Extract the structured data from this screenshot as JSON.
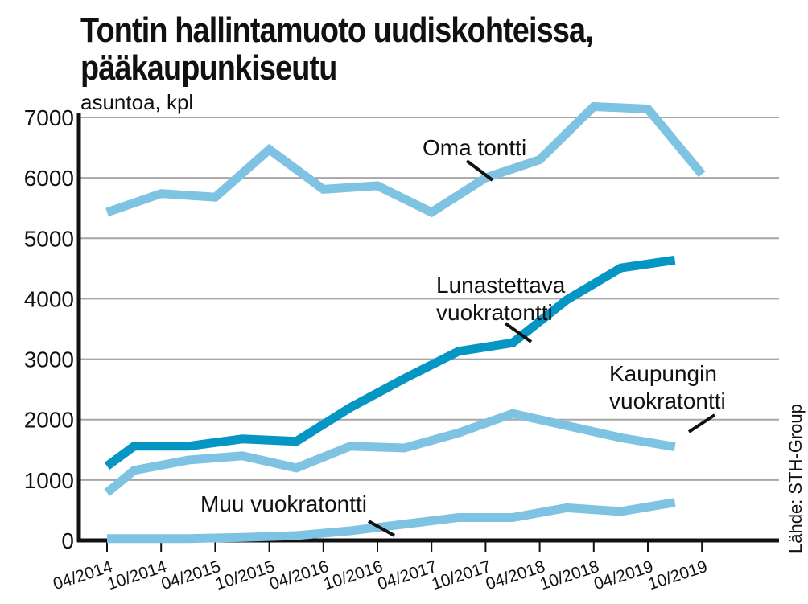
{
  "page": {
    "title_line1": "Tontin hallintamuoto uudiskohteissa,",
    "title_line2": "pääkaupunkiseutu",
    "subtitle": "asuntoa, kpl",
    "source": "Lähde: STH-Group"
  },
  "chart_data": {
    "type": "line",
    "ylabel": "asuntoa, kpl",
    "ylim": [
      0,
      7000
    ],
    "yticks": [
      0,
      1000,
      2000,
      3000,
      4000,
      5000,
      6000,
      7000
    ],
    "grid": true,
    "categories": [
      "04/2014",
      "10/2014",
      "04/2015",
      "10/2015",
      "04/2016",
      "10/2016",
      "04/2017",
      "10/2017",
      "04/2018",
      "10/2018",
      "04/2019",
      "10/2019"
    ],
    "x_points": [
      "04/2014",
      "07/2014",
      "10/2014",
      "01/2015",
      "04/2015",
      "07/2015",
      "10/2015",
      "01/2016",
      "04/2016",
      "07/2016",
      "10/2016",
      "01/2017",
      "04/2017",
      "07/2017",
      "10/2017",
      "01/2018",
      "04/2018",
      "07/2018",
      "10/2018",
      "01/2019",
      "04/2019",
      "07/2019",
      "10/2019"
    ],
    "series": [
      {
        "name": "Oma tontti",
        "color": "#7fc3e3",
        "values": [
          5430,
          5740,
          5680,
          6470,
          5810,
          5870,
          5430,
          6000,
          6300,
          7180,
          7140,
          6060
        ],
        "point_index": [
          0,
          2,
          4,
          6,
          8,
          10,
          12,
          14,
          16,
          18,
          20,
          22
        ]
      },
      {
        "name": "Lunastettava vuokratontti",
        "color": "#0596c4",
        "values": [
          1230,
          1560,
          1560,
          1680,
          1640,
          2200,
          2680,
          3130,
          3270,
          3980,
          4510,
          4640
        ],
        "point_index": [
          0,
          1,
          3,
          5,
          7,
          9,
          11,
          13,
          15,
          17,
          19,
          21
        ]
      },
      {
        "name": "Kaupungin vuokratontti",
        "color": "#7fc3e3",
        "values": [
          790,
          1160,
          1330,
          1400,
          1200,
          1560,
          1530,
          1780,
          2100,
          1900,
          1700,
          1550
        ],
        "point_index": [
          0,
          1,
          3,
          5,
          7,
          9,
          11,
          13,
          15,
          17,
          19,
          21
        ]
      },
      {
        "name": "Muu vuokratontti",
        "color": "#7fc3e3",
        "values": [
          30,
          30,
          30,
          50,
          80,
          160,
          270,
          380,
          380,
          540,
          480,
          630
        ],
        "point_index": [
          0,
          1,
          3,
          5,
          7,
          9,
          11,
          13,
          15,
          17,
          19,
          21
        ]
      }
    ]
  }
}
